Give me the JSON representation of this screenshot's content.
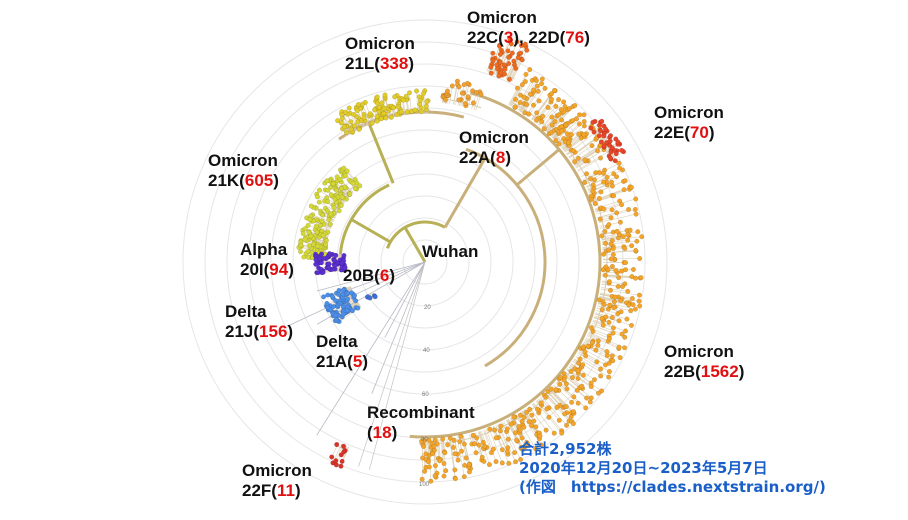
{
  "title_note": {
    "line1": "合計2,952株",
    "line2": "2020年12月20日~2023年5月7日",
    "line3": "(作図　https://clades.nextstrain.org/)"
  },
  "root_label": "Wuhan",
  "axis_ticks": [
    "20",
    "40",
    "60",
    "80",
    "100"
  ],
  "clades": [
    {
      "id": "omicron-22c-22d",
      "line1": "Omicron",
      "line2_parts": [
        "22C(",
        "3",
        "), 22D(",
        "76",
        ")"
      ],
      "color": "#ee6a1f"
    },
    {
      "id": "omicron-21l",
      "line1": "Omicron",
      "line2_parts": [
        "21L(",
        "338",
        ")"
      ],
      "color": "#e2cc2a"
    },
    {
      "id": "omicron-22e",
      "line1": "Omicron",
      "line2_parts": [
        "22E(",
        "70",
        ")"
      ],
      "color": "#e8452a"
    },
    {
      "id": "omicron-22a",
      "line1": "Omicron",
      "line2_parts": [
        "22A(",
        "8",
        ")"
      ],
      "color": "#f0a030"
    },
    {
      "id": "omicron-21k",
      "line1": "Omicron",
      "line2_parts": [
        "21K(",
        "605",
        ")"
      ],
      "color": "#d4d836"
    },
    {
      "id": "alpha-20i",
      "line1": "Alpha",
      "line2_parts": [
        "20I(",
        "94",
        ")"
      ],
      "color": "#5b2fd0"
    },
    {
      "id": "clade-20b",
      "line1": "",
      "line2_parts": [
        "20B(",
        "6",
        ")"
      ],
      "color": "#6a5acd"
    },
    {
      "id": "delta-21j",
      "line1": "Delta",
      "line2_parts": [
        "21J(",
        "156",
        ")"
      ],
      "color": "#4d8fe8"
    },
    {
      "id": "delta-21a",
      "line1": "Delta",
      "line2_parts": [
        "21A(",
        "5",
        ")"
      ],
      "color": "#3f6fd8"
    },
    {
      "id": "omicron-22b",
      "line1": "Omicron",
      "line2_parts": [
        "22B(",
        "1562",
        ")"
      ],
      "color": "#f3a52a"
    },
    {
      "id": "recombinant",
      "line1": "Recombinant",
      "line2_parts": [
        "(",
        "18",
        ")"
      ],
      "color": "#c8c8c8"
    },
    {
      "id": "omicron-22f",
      "line1": "Omicron",
      "line2_parts": [
        "22F(",
        "11",
        ")"
      ],
      "color": "#d8342a"
    }
  ]
}
